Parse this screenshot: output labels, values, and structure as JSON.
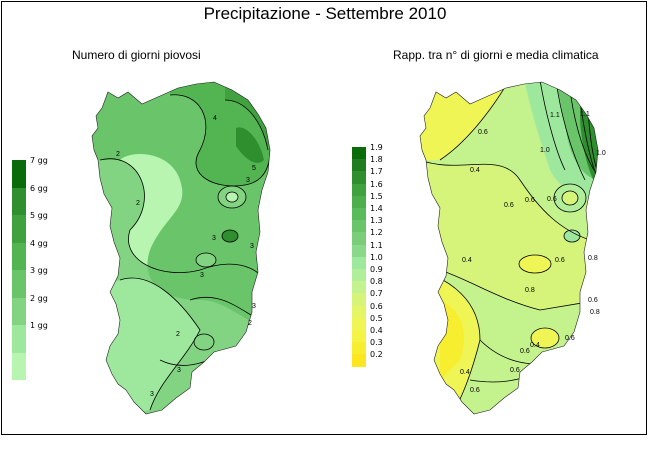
{
  "title": "Precipitazione - Settembre 2010",
  "left_map": {
    "subtitle": "Numero di giorni piovosi",
    "legend": {
      "labels": [
        "7 gg",
        "6 gg",
        "5 gg",
        "4 gg",
        "3 gg",
        "2 gg",
        "1 gg"
      ],
      "colors": [
        "#0a6b0a",
        "#2f8f2f",
        "#3fa23f",
        "#52b552",
        "#6ac56a",
        "#82d482",
        "#9ee89e",
        "#b8f5b0"
      ]
    },
    "contour_labels": [
      "2",
      "4",
      "5",
      "2",
      "3",
      "3",
      "3",
      "3",
      "3",
      "2",
      "2",
      "3",
      "3"
    ]
  },
  "right_map": {
    "subtitle": "Rapp. tra n° di giorni e media climatica",
    "legend": {
      "labels": [
        "1.9",
        "1.8",
        "1.7",
        "1.6",
        "1.5",
        "1.4",
        "1.3",
        "1.2",
        "1.1",
        "1.0",
        "0.9",
        "0.8",
        "0.7",
        "0.6",
        "0.5",
        "0.4",
        "0.3",
        "0.2"
      ],
      "colors": [
        "#0a6b0a",
        "#1f7d1f",
        "#2f8f2f",
        "#3fa23f",
        "#4caf4c",
        "#5abb5a",
        "#6ac56a",
        "#7ace7a",
        "#8ad88a",
        "#9ee89e",
        "#b0ee9a",
        "#c4f28c",
        "#d6f47a",
        "#e4f566",
        "#eef555",
        "#f4f445",
        "#f8ee30",
        "#fbe620"
      ]
    },
    "contour_labels": [
      "0.6",
      "0.4",
      "0.6",
      "1.0",
      "1.1",
      "1.1",
      "0.6",
      "0.6",
      "0.4",
      "0.6",
      "0.8",
      "0.8",
      "0.4",
      "0.6",
      "0.6",
      "1.0",
      "0.8",
      "0.4",
      "0.6",
      "0.6",
      "0.6"
    ]
  }
}
